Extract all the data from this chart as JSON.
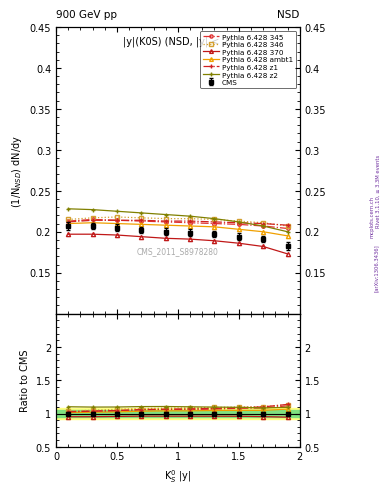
{
  "title_top": "900 GeV pp",
  "title_right": "NSD",
  "plot_title": "|y|(K0S) (NSD, |y| < 2)",
  "watermark": "CMS_2011_S8978280",
  "right_label": "Rivet 3.1.10, ≥ 3.3M events",
  "arxiv_label": "[arXiv:1306.3436]",
  "mcplots_label": "mcplots.cern.ch",
  "ylabel_main": "(1/N$_{NSD}$) dN/dy",
  "ylabel_ratio": "Ratio to CMS",
  "xlabel": "K$^{0}_{S}$ |y|",
  "ylim_main": [
    0.1,
    0.45
  ],
  "ylim_ratio": [
    0.5,
    2.5
  ],
  "xlim": [
    0,
    2
  ],
  "xticks": [
    0,
    0.5,
    1.0,
    1.5,
    2.0
  ],
  "cms_x": [
    0.1,
    0.3,
    0.5,
    0.7,
    0.9,
    1.1,
    1.3,
    1.5,
    1.7,
    1.9
  ],
  "cms_y": [
    0.207,
    0.207,
    0.205,
    0.202,
    0.2,
    0.199,
    0.197,
    0.194,
    0.191,
    0.183
  ],
  "cms_yerr": [
    0.005,
    0.004,
    0.004,
    0.004,
    0.004,
    0.004,
    0.004,
    0.004,
    0.004,
    0.005
  ],
  "cms_color": "#000000",
  "p345_x": [
    0.1,
    0.3,
    0.5,
    0.7,
    0.9,
    1.1,
    1.3,
    1.5,
    1.7,
    1.9
  ],
  "p345_y": [
    0.213,
    0.215,
    0.214,
    0.213,
    0.212,
    0.211,
    0.21,
    0.209,
    0.207,
    0.204
  ],
  "p345_color": "#e03030",
  "p346_x": [
    0.1,
    0.3,
    0.5,
    0.7,
    0.9,
    1.1,
    1.3,
    1.5,
    1.7,
    1.9
  ],
  "p346_y": [
    0.215,
    0.217,
    0.218,
    0.217,
    0.216,
    0.216,
    0.215,
    0.213,
    0.211,
    0.207
  ],
  "p346_color": "#d4a030",
  "p370_x": [
    0.1,
    0.3,
    0.5,
    0.7,
    0.9,
    1.1,
    1.3,
    1.5,
    1.7,
    1.9
  ],
  "p370_y": [
    0.197,
    0.197,
    0.196,
    0.194,
    0.192,
    0.191,
    0.189,
    0.186,
    0.182,
    0.173
  ],
  "p370_color": "#c01818",
  "pambt1_x": [
    0.1,
    0.3,
    0.5,
    0.7,
    0.9,
    1.1,
    1.3,
    1.5,
    1.7,
    1.9
  ],
  "pambt1_y": [
    0.21,
    0.211,
    0.21,
    0.209,
    0.208,
    0.207,
    0.206,
    0.203,
    0.2,
    0.195
  ],
  "pambt1_color": "#f0a000",
  "pz1_x": [
    0.1,
    0.3,
    0.5,
    0.7,
    0.9,
    1.1,
    1.3,
    1.5,
    1.7,
    1.9
  ],
  "pz1_y": [
    0.212,
    0.214,
    0.214,
    0.214,
    0.213,
    0.213,
    0.212,
    0.211,
    0.21,
    0.208
  ],
  "pz1_color": "#d02020",
  "pz2_x": [
    0.1,
    0.3,
    0.5,
    0.7,
    0.9,
    1.1,
    1.3,
    1.5,
    1.7,
    1.9
  ],
  "pz2_y": [
    0.228,
    0.227,
    0.225,
    0.223,
    0.221,
    0.219,
    0.216,
    0.212,
    0.207,
    0.2
  ],
  "pz2_color": "#808000",
  "green_band_half": 0.05,
  "yellow_band_half": 0.09
}
